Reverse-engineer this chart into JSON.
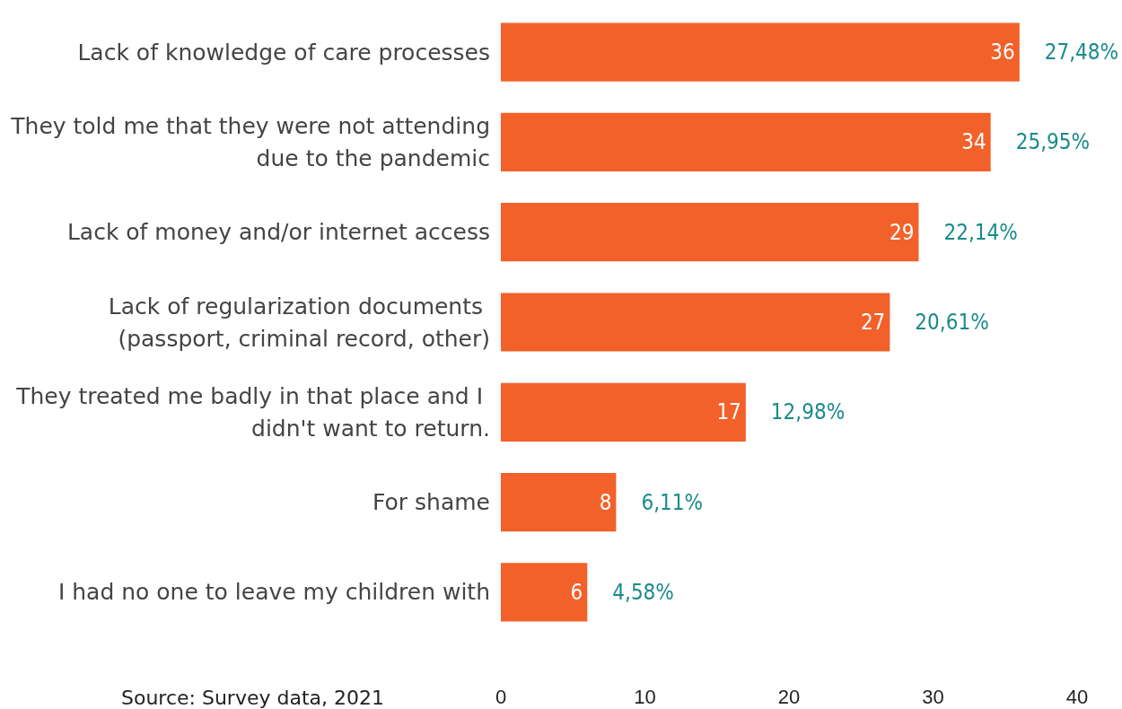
{
  "chart_data": {
    "type": "bar",
    "orientation": "horizontal",
    "categories": [
      "Lack of knowledge of care processes",
      "They told me that they were not attending due to the pandemic",
      "Lack of money and/or internet access",
      "Lack of regularization documents (passport, criminal record, other)",
      "They treated me badly in that place and I didn't want to return.",
      "For shame",
      "I had no one to leave my children with"
    ],
    "values": [
      36,
      34,
      29,
      27,
      17,
      8,
      6
    ],
    "color": "#f26129",
    "data_labels": true,
    "xlim": [
      0,
      40
    ],
    "xticks": [
      0,
      10,
      20,
      30,
      40
    ],
    "grid": false,
    "annotations": [
      {
        "text": "27,48%",
        "x": 36,
        "y": "Lack of knowledge of care processes"
      },
      {
        "text": "25,95%",
        "x": 34,
        "y": "They told me that they were not attending due to the pandemic"
      },
      {
        "text": "22,14%",
        "x": 29,
        "y": "Lack of money and/or internet access"
      },
      {
        "text": "20,61%",
        "x": 27,
        "y": "Lack of regularization documents (passport, criminal record, other)"
      },
      {
        "text": "12,98%",
        "x": 17,
        "y": "They treated me badly in that place and I didn't want to return."
      },
      {
        "text": "6,11%",
        "x": 8,
        "y": "For shame"
      },
      {
        "text": "4,58%",
        "x": 6,
        "y": "I had no one to leave my children with"
      },
      "Source: Survey data, 2021"
    ]
  }
}
